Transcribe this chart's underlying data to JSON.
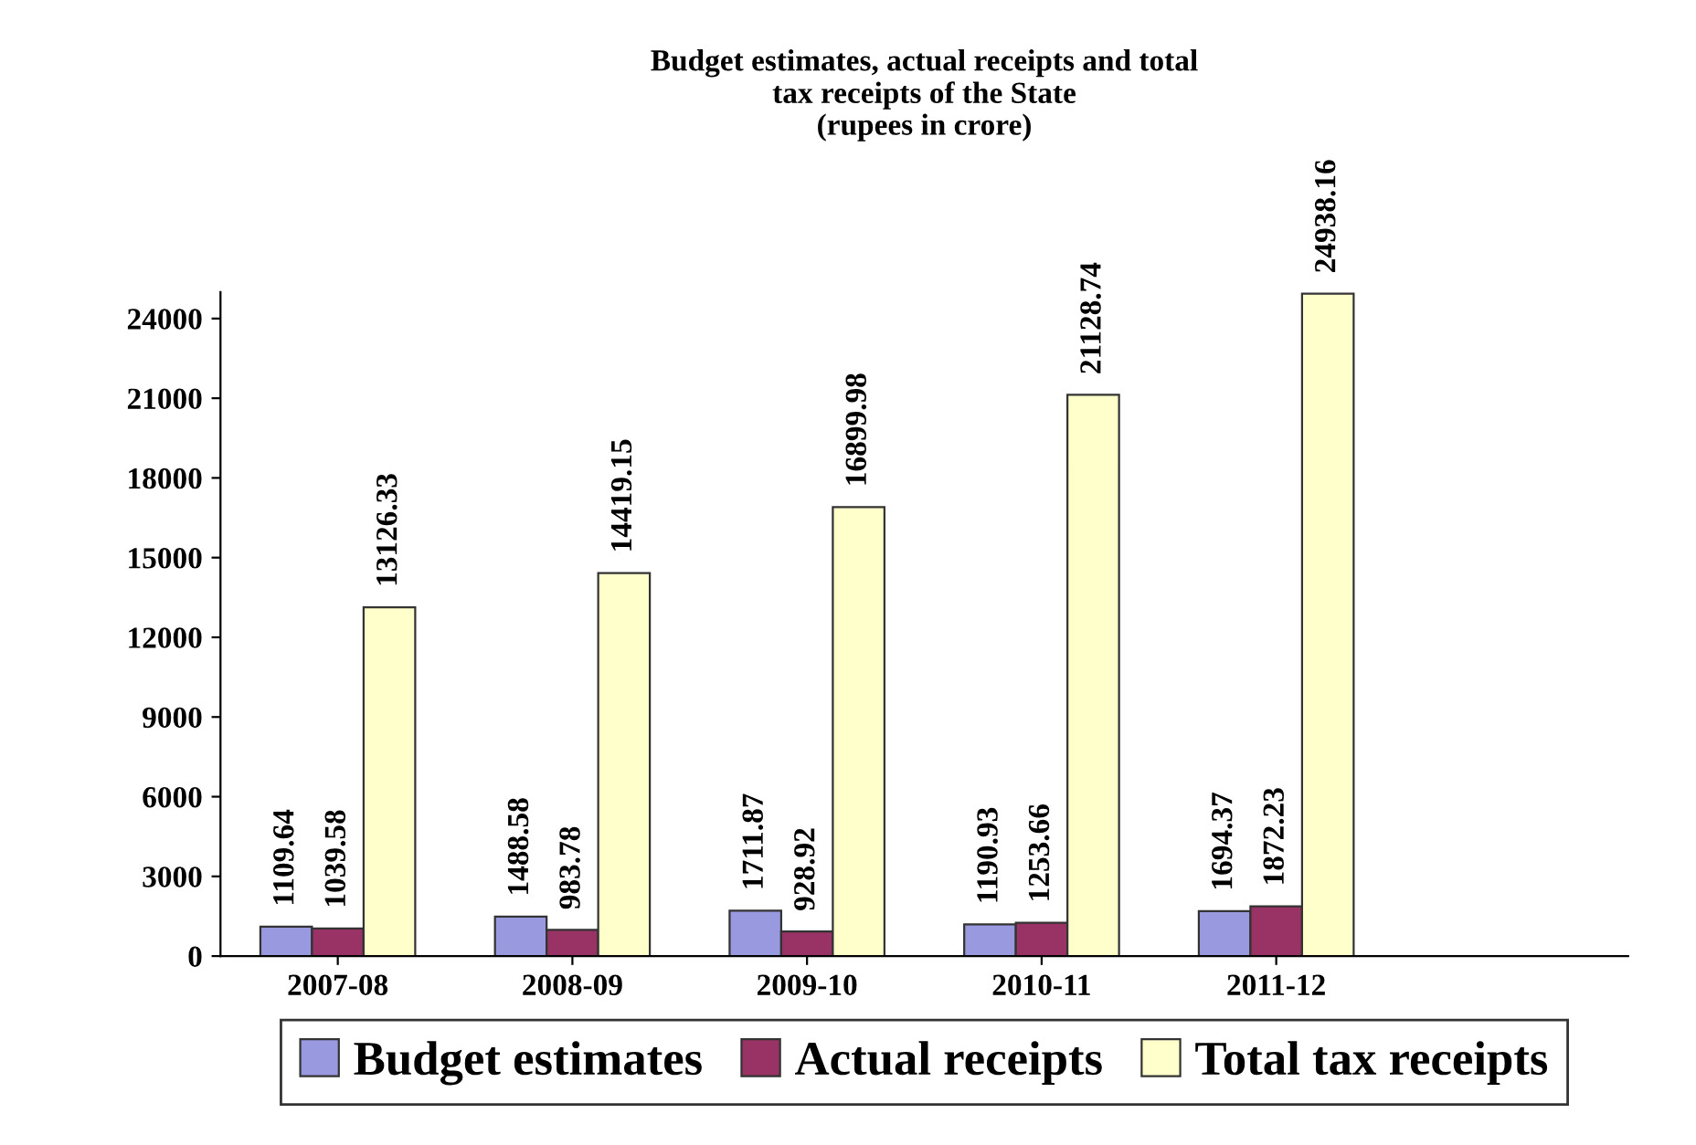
{
  "chart_data": {
    "type": "bar",
    "title": "Budget estimates, actual receipts and total\ntax receipts of the State\n(rupees in crore)",
    "categories": [
      "2007-08",
      "2008-09",
      "2009-10",
      "2010-11",
      "2011-12"
    ],
    "series": [
      {
        "name": "Budget estimates",
        "color": "#9999e0",
        "values": [
          1109.64,
          1488.58,
          1711.87,
          1190.93,
          1694.37
        ]
      },
      {
        "name": "Actual receipts",
        "color": "#993366",
        "values": [
          1039.58,
          983.78,
          928.92,
          1253.66,
          1872.23
        ]
      },
      {
        "name": "Total tax receipts",
        "color": "#ffffcc",
        "values": [
          13126.33,
          14419.15,
          16899.98,
          21128.74,
          24938.16
        ]
      }
    ],
    "ylim": [
      0,
      25000
    ],
    "yticks": [
      0,
      3000,
      6000,
      9000,
      12000,
      15000,
      18000,
      21000,
      24000
    ],
    "data_labels": true,
    "grid": false,
    "legend": "bottom"
  }
}
